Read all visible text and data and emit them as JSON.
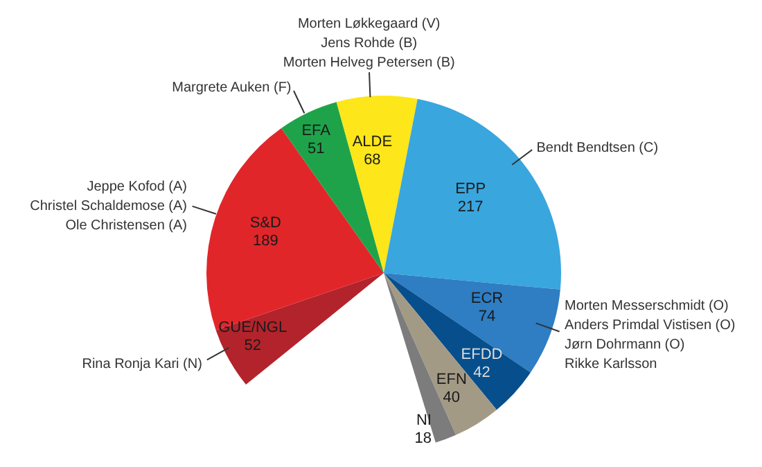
{
  "chart_data": {
    "type": "pie",
    "categories": [
      "GUE/NGL",
      "S&D",
      "EFA",
      "ALDE",
      "EPP",
      "ECR",
      "EFDD",
      "EFN",
      "NI"
    ],
    "values": [
      52,
      189,
      51,
      68,
      217,
      74,
      42,
      40,
      18
    ],
    "colors": [
      "#b3232b",
      "#e1262a",
      "#1fa34a",
      "#fde619",
      "#39a6de",
      "#2f7dc2",
      "#074f8c",
      "#a39a86",
      "#7c7c7c"
    ],
    "data_labels": true,
    "legend": false,
    "annotations": [
      {
        "text": "Rina Ronja Kari (N)",
        "x": "GUE/NGL"
      },
      {
        "text": "Jeppe Kofod (A)",
        "x": "S&D"
      },
      {
        "text": "Christel Schaldemose (A)",
        "x": "S&D"
      },
      {
        "text": "Ole Christensen (A)",
        "x": "S&D"
      },
      {
        "text": "Margrete Auken (F)",
        "x": "EFA"
      },
      {
        "text": "Morten Løkkegaard (V)",
        "x": "ALDE"
      },
      {
        "text": "Jens Rohde (B)",
        "x": "ALDE"
      },
      {
        "text": "Morten Helveg Petersen (B)",
        "x": "ALDE"
      },
      {
        "text": "Bendt Bendtsen (C)",
        "x": "EPP"
      },
      {
        "text": "Morten Messerschmidt (O)",
        "x": "ECR"
      },
      {
        "text": "Anders Primdal Vistisen (O)",
        "x": "ECR"
      },
      {
        "text": "Jørn Dohrmann (O)",
        "x": "ECR"
      },
      {
        "text": "Rikke Karlsson",
        "x": "ECR"
      }
    ]
  }
}
